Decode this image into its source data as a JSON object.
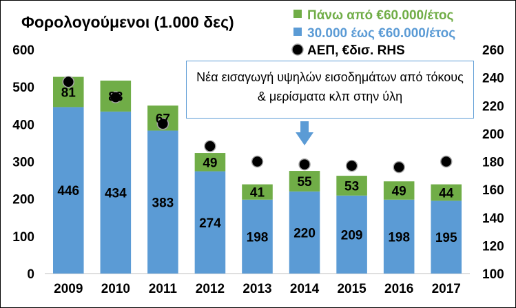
{
  "chart_data": {
    "type": "bar",
    "stacked": true,
    "title": "Φορολογούμενοι (1.000 δες)",
    "categories": [
      "2009",
      "2010",
      "2011",
      "2012",
      "2013",
      "2014",
      "2015",
      "2016",
      "2017"
    ],
    "series": [
      {
        "name": "30.000 έως €60.000/έτος",
        "type": "bar",
        "axis": "left",
        "color": "#5b9bd5",
        "values": [
          446,
          434,
          383,
          274,
          198,
          220,
          209,
          198,
          195
        ],
        "labels": [
          "446",
          "434",
          "383",
          "274",
          "198",
          "220",
          "209",
          "198",
          "195"
        ]
      },
      {
        "name": "Πάνω από €60.000/έτος",
        "type": "bar",
        "axis": "left",
        "color": "#70ad47",
        "values": [
          81,
          83,
          67,
          49,
          41,
          55,
          53,
          49,
          44
        ],
        "labels": [
          "81",
          "83",
          "67",
          "49",
          "41",
          "55",
          "53",
          "49",
          "44"
        ]
      },
      {
        "name": "ΑΕΠ, €δισ. RHS",
        "type": "scatter",
        "axis": "right",
        "color": "#000000",
        "values": [
          237,
          226,
          207,
          191,
          180,
          178,
          177,
          176,
          180
        ]
      }
    ],
    "ylim": [
      0,
      600
    ],
    "yticks": [
      "0",
      "100",
      "200",
      "300",
      "400",
      "500",
      "600"
    ],
    "y2lim": [
      100,
      260
    ],
    "y2ticks": [
      "100",
      "120",
      "140",
      "160",
      "180",
      "200",
      "220",
      "240",
      "260"
    ],
    "legend_position": "top-right",
    "grid": false,
    "annotation": {
      "text": "Νέα εισαγωγή υψηλών εισοδημάτων από τόκους & μερίσματα κλπ στην ύλη",
      "arrow_category": "2014",
      "colors": {
        "border": "#5b9bd5",
        "arrow": "#5b9bd5"
      }
    }
  }
}
